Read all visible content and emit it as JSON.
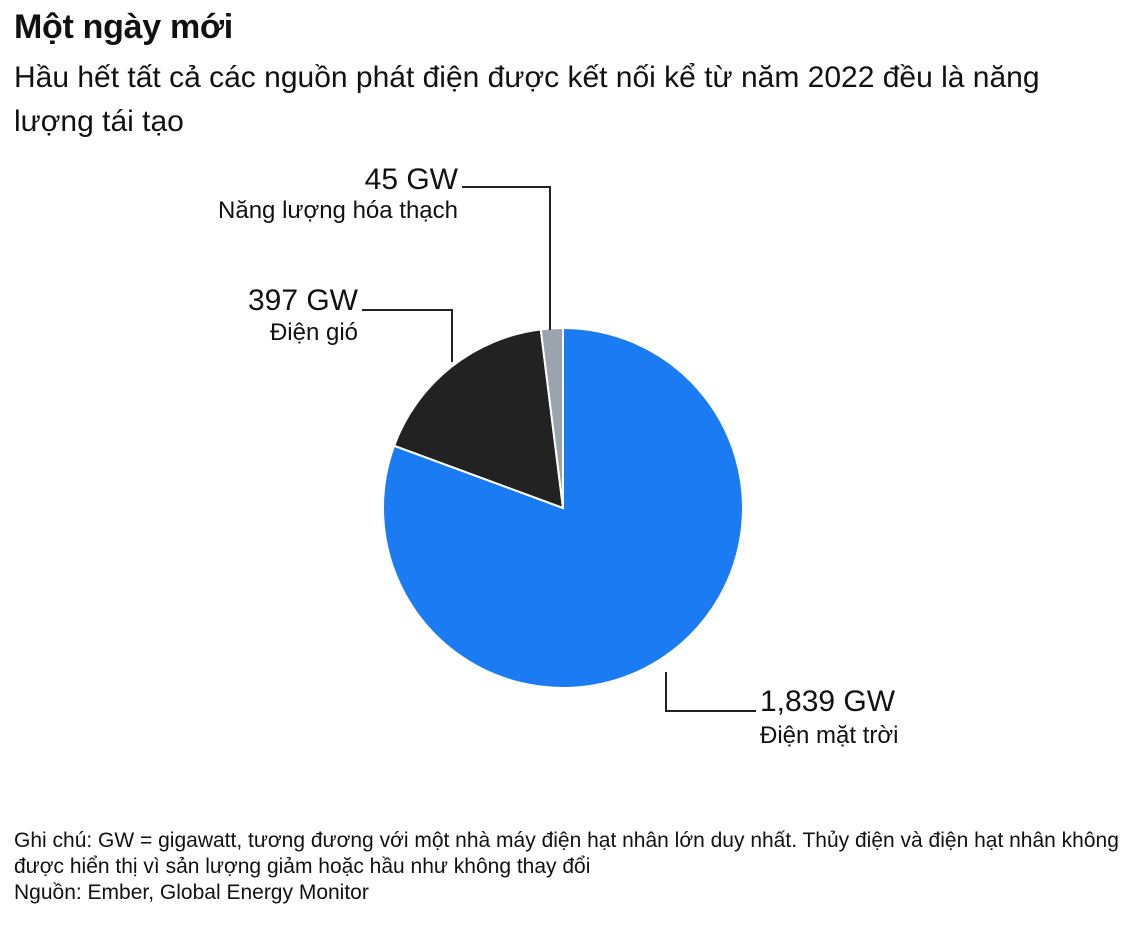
{
  "title": "Một ngày mới",
  "subtitle": "Hầu hết tất cả các nguồn phát điện được kết nối kể từ năm 2022 đều là năng lượng tái tạo",
  "chart_data": {
    "type": "pie",
    "slices": [
      {
        "label": "Điện mặt trời",
        "value": 1839,
        "value_label": "1,839 GW",
        "color": "#1a7bf2"
      },
      {
        "label": "Điện gió",
        "value": 397,
        "value_label": "397 GW",
        "color": "#222222"
      },
      {
        "label": "Năng lượng hóa thạch",
        "value": 45,
        "value_label": "45 GW",
        "color": "#9aa4ae"
      }
    ]
  },
  "notes": {
    "note": "Ghi chú: GW = gigawatt, tương đương với một nhà máy điện hạt nhân lớn duy nhất. Thủy điện và điện hạt nhân không được hiển thị vì sản lượng giảm hoặc hầu như không thay đổi",
    "source": "Nguồn: Ember, Global Energy Monitor"
  }
}
